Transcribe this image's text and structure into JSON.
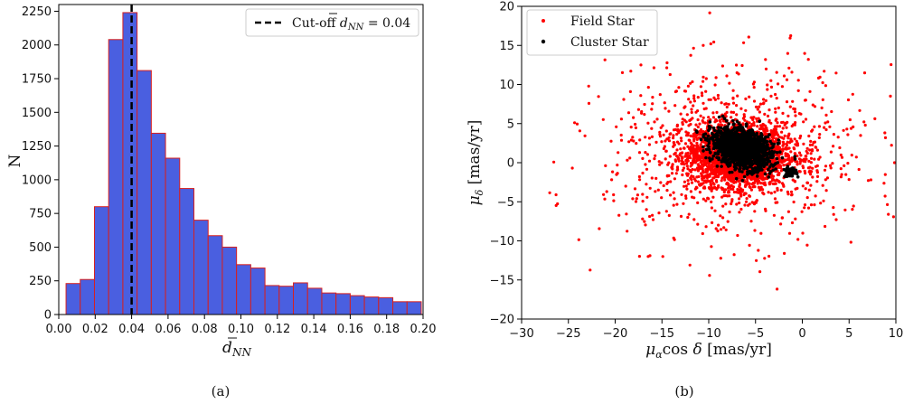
{
  "chart_data": [
    {
      "type": "bar",
      "subplot": "histogram",
      "xlabel": "d̄NN",
      "xlabel_main": "d",
      "xlabel_sub": "NN",
      "ylabel": "N",
      "xlim": [
        0.0,
        0.2
      ],
      "ylim": [
        0,
        2300
      ],
      "x_ticks": [
        0.0,
        0.02,
        0.04,
        0.06,
        0.08,
        0.1,
        0.12,
        0.14,
        0.16,
        0.18,
        0.2
      ],
      "x_tick_labels": [
        "0.00",
        "0.02",
        "0.04",
        "0.06",
        "0.08",
        "0.10",
        "0.12",
        "0.14",
        "0.16",
        "0.18",
        "0.20"
      ],
      "y_ticks": [
        0,
        250,
        500,
        750,
        1000,
        1250,
        1500,
        1750,
        2000,
        2250
      ],
      "y_tick_labels": [
        "0",
        "250",
        "500",
        "750",
        "1000",
        "1250",
        "1500",
        "1750",
        "2000",
        "2250"
      ],
      "bin_edges_start": 0.004,
      "bin_width": 0.0078,
      "values": [
        230,
        260,
        800,
        2040,
        2240,
        1810,
        1345,
        1160,
        935,
        700,
        585,
        500,
        370,
        345,
        215,
        210,
        235,
        195,
        160,
        155,
        140,
        130,
        125,
        95,
        95
      ],
      "bar_color": "#4a5fe0",
      "bar_edge_color": "#d62020",
      "cutoff": {
        "x": 0.04,
        "label_prefix": "Cut-off ",
        "label_symbol": "d",
        "label_sub": "NN",
        "label_suffix": " = 0.04",
        "color": "#000000"
      },
      "caption": "(a)"
    },
    {
      "type": "scatter",
      "subplot": "proper-motion",
      "xlabel": "μαcos δ [mas/yr]",
      "ylabel": "μδ [mas/yr]",
      "xlim": [
        -30,
        10
      ],
      "ylim": [
        -20,
        20
      ],
      "x_ticks": [
        -30,
        -25,
        -20,
        -15,
        -10,
        -5,
        0,
        5,
        10
      ],
      "x_tick_labels": [
        "−30",
        "−25",
        "−20",
        "−15",
        "−10",
        "−5",
        "0",
        "5",
        "10"
      ],
      "y_ticks": [
        -20,
        -15,
        -10,
        -5,
        0,
        5,
        10,
        15,
        20
      ],
      "y_tick_labels": [
        "−20",
        "−15",
        "−10",
        "−5",
        "0",
        "5",
        "10",
        "15",
        "20"
      ],
      "series": [
        {
          "name": "Field Star",
          "color": "#ff0000",
          "distribution": {
            "center": [
              -7.0,
              1.0
            ],
            "core_sigma": [
              2.6,
              2.0
            ],
            "halo_sigma": [
              7.0,
              5.5
            ],
            "n_core": 2600,
            "n_halo": 900
          }
        },
        {
          "name": "Cluster Star",
          "color": "#000000",
          "distribution": {
            "center": [
              -6.5,
              1.8
            ],
            "sigma": [
              1.6,
              1.2
            ],
            "n": 1400,
            "secondary_center": [
              -1.3,
              -1.2
            ],
            "secondary_sigma": [
              0.35,
              0.3
            ],
            "secondary_n": 60
          }
        }
      ],
      "caption": "(b)"
    }
  ]
}
